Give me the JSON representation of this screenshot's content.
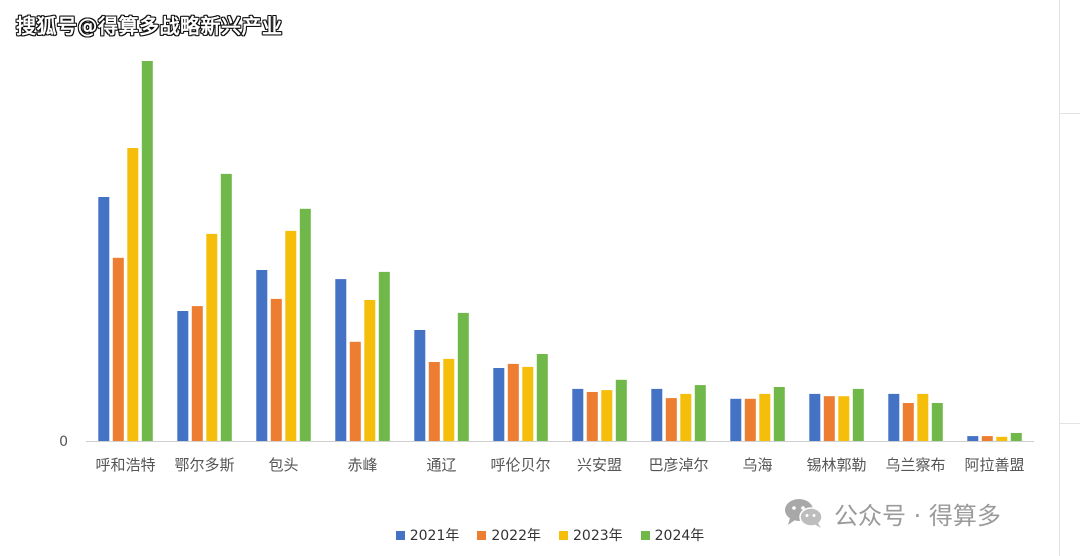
{
  "watermark_top": "搜狐号@得算多战略新兴产业",
  "watermark_bottom": "公众号 · 得算多",
  "icons": {
    "wechat": "wechat-logo-icon"
  },
  "colors": {
    "series": [
      "#4472C4",
      "#ED7D31",
      "#F5BE0B",
      "#70B84A"
    ],
    "axis": "#d0d0d0",
    "text": "#555555"
  },
  "chart_data": {
    "type": "bar",
    "title": "",
    "xlabel": "",
    "ylabel": "",
    "ylim": [
      0,
      100
    ],
    "y_tick_labels": [
      "0"
    ],
    "grid": false,
    "legend_position": "bottom",
    "categories": [
      "呼和浩特",
      "鄂尔多斯",
      "包头",
      "赤峰",
      "通辽",
      "呼伦贝尔",
      "兴安盟",
      "巴彦淖尔",
      "乌海",
      "锡林郭勒",
      "乌兰察布",
      "阿拉善盟"
    ],
    "series": [
      {
        "name": "2021年",
        "values": [
          64.2,
          34.2,
          45.0,
          42.6,
          29.2,
          19.2,
          13.7,
          13.7,
          11.1,
          12.4,
          12.4,
          1.3
        ]
      },
      {
        "name": "2022年",
        "values": [
          48.2,
          35.5,
          37.4,
          26.1,
          20.8,
          20.3,
          12.9,
          11.3,
          11.1,
          11.8,
          10.0,
          1.3
        ]
      },
      {
        "name": "2023年",
        "values": [
          77.1,
          54.5,
          55.3,
          37.1,
          21.6,
          19.5,
          13.4,
          12.4,
          12.4,
          11.8,
          12.4,
          1.1
        ]
      },
      {
        "name": "2024年",
        "values": [
          100,
          70.3,
          61.1,
          44.5,
          33.7,
          22.9,
          16.1,
          14.7,
          14.2,
          13.7,
          10.0,
          2.1
        ]
      }
    ]
  }
}
